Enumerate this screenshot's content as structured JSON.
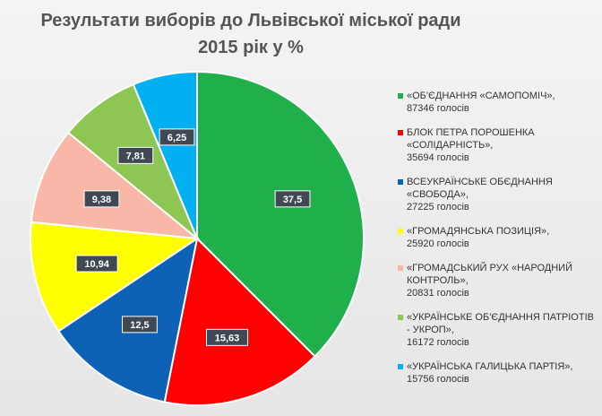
{
  "chart_data": {
    "type": "pie",
    "title_line1": "Результати виборів до Львівської міської ради",
    "title_line2": "2015 рік у %",
    "slices": [
      {
        "name": "«ОБ'ЄДНАННЯ «САМОПОМІЧ»,",
        "votes": "87346 голосів",
        "value": 37.5,
        "label": "37,5",
        "color": "#1fb04c"
      },
      {
        "name": "БЛОК ПЕТРА ПОРОШЕНКА «СОЛІДАРНІСТЬ»,",
        "votes": "35694 голосів",
        "value": 15.63,
        "label": "15,63",
        "color": "#ff0000"
      },
      {
        "name": "ВСЕУКРАЇНСЬКЕ ОБЄДНАННЯ «СВОБОДА»,",
        "votes": "27225 голосів",
        "value": 12.5,
        "label": "12,5",
        "color": "#0e62b6"
      },
      {
        "name": "«ГРОМАДЯНСЬКА ПОЗИЦІЯ»,",
        "votes": "25920 голосів",
        "value": 10.94,
        "label": "10,94",
        "color": "#ffff00"
      },
      {
        "name": "«ГРОМАДСЬКИЙ РУХ «НАРОДНИЙ КОНТРОЛЬ»,",
        "votes": "20831 голосів",
        "value": 9.38,
        "label": "9,38",
        "color": "#f8b7a7"
      },
      {
        "name": "«УКРАЇНСЬКЕ ОБ'ЄДНАННЯ ПАТРІОТІВ - УКРОП»,",
        "votes": "16172 голосів",
        "value": 7.81,
        "label": "7,81",
        "color": "#8ec653"
      },
      {
        "name": "«УКРАЇНСЬКА ГАЛИЦЬКА ПАРТІЯ»,",
        "votes": "15756 голосів",
        "value": 6.25,
        "label": "6,25",
        "color": "#00b0f0"
      }
    ]
  }
}
